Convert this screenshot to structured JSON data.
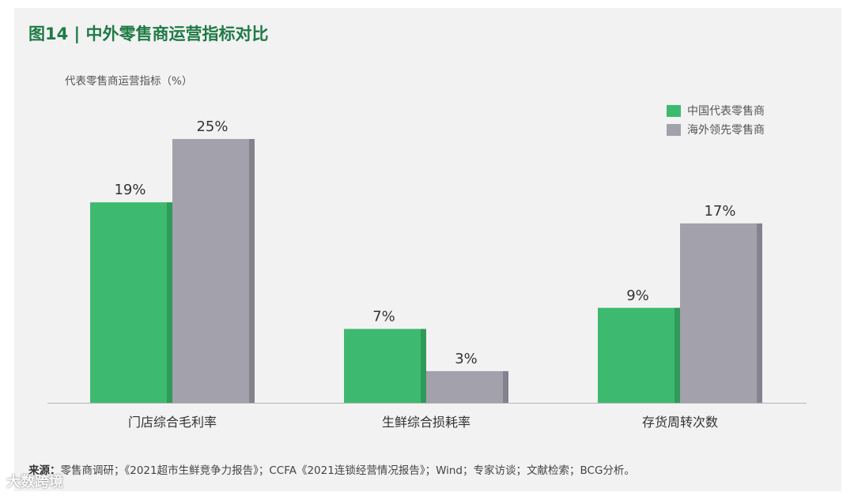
{
  "title": "图14 | 中外零售商运营指标对比",
  "chart_data": {
    "type": "bar",
    "ylabel": "代表零售商运营指标（%）",
    "categories": [
      "门店综合毛利率",
      "生鲜综合损耗率",
      "存货周转次数"
    ],
    "series": [
      {
        "name": "中国代表零售商",
        "values": [
          19,
          7,
          9
        ],
        "labels": [
          "19%",
          "7%",
          "9%"
        ],
        "color": "#3dba6f",
        "shade": "#2f9a59"
      },
      {
        "name": "海外领先零售商",
        "values": [
          25,
          3,
          17
        ],
        "labels": [
          "25%",
          "3%",
          "17%"
        ],
        "color": "#a3a1ab",
        "shade": "#84828c"
      }
    ],
    "ylim": [
      0,
      25
    ],
    "grid": false,
    "legend_position": "top-right"
  },
  "source": {
    "label": "来源：",
    "text": "零售商调研；《2021超市生鲜竞争力报告》；CCFA《2021连锁经营情况报告》；Wind；专家访谈；文献检索；BCG分析。"
  },
  "watermark": "大数跨境"
}
